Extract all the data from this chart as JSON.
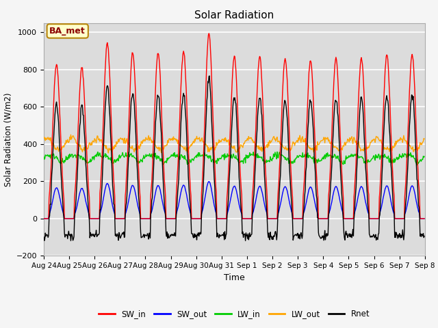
{
  "title": "Solar Radiation",
  "xlabel": "Time",
  "ylabel": "Solar Radiation (W/m2)",
  "ylim": [
    -200,
    1050
  ],
  "annotation": "BA_met",
  "tick_labels": [
    "Aug 24",
    "Aug 25",
    "Aug 26",
    "Aug 27",
    "Aug 28",
    "Aug 29",
    "Aug 30",
    "Aug 31",
    "Sep 1",
    "Sep 2",
    "Sep 3",
    "Sep 4",
    "Sep 5",
    "Sep 6",
    "Sep 7",
    "Sep 8"
  ],
  "series": {
    "SW_in": {
      "color": "#ff0000",
      "lw": 1.0
    },
    "SW_out": {
      "color": "#0000ff",
      "lw": 1.0
    },
    "LW_in": {
      "color": "#00cc00",
      "lw": 1.0
    },
    "LW_out": {
      "color": "#ffa500",
      "lw": 1.0
    },
    "Rnet": {
      "color": "#000000",
      "lw": 1.0
    }
  },
  "plot_bg_color": "#dcdcdc",
  "fig_bg_color": "#f5f5f5",
  "grid_color": "#ffffff",
  "yticks": [
    -200,
    0,
    200,
    400,
    600,
    800,
    1000
  ]
}
